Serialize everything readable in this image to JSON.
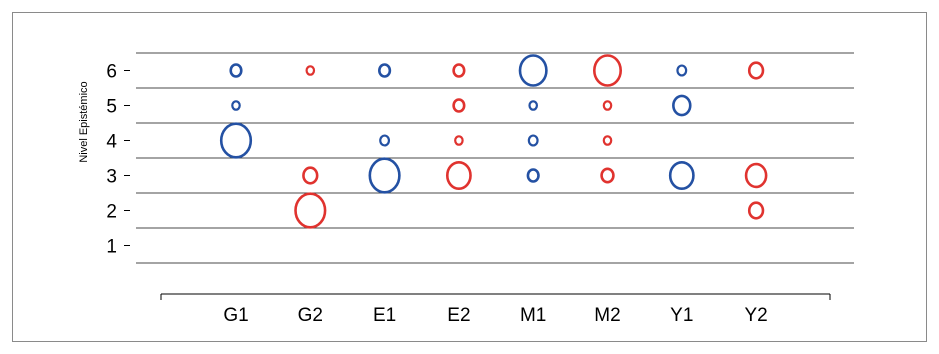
{
  "chart_data": {
    "type": "scatter",
    "title": "",
    "xlabel": "",
    "ylabel": "Nivel Epistémico",
    "categories": [
      "G1",
      "G2",
      "E1",
      "E2",
      "M1",
      "M2",
      "Y1",
      "Y2"
    ],
    "yticks": [
      1,
      2,
      3,
      4,
      5,
      6
    ],
    "ylim": [
      0.5,
      6.5
    ],
    "grid": true,
    "colors": {
      "blue": "#2451a3",
      "red": "#e0332f"
    },
    "points": [
      {
        "x": "G1",
        "y": 6,
        "size": 1,
        "color": "blue"
      },
      {
        "x": "G1",
        "y": 5,
        "size": 0.5,
        "color": "blue"
      },
      {
        "x": "G1",
        "y": 4,
        "size": 4,
        "color": "blue"
      },
      {
        "x": "G2",
        "y": 6,
        "size": 0.5,
        "color": "red"
      },
      {
        "x": "G2",
        "y": 3,
        "size": 1.5,
        "color": "red"
      },
      {
        "x": "G2",
        "y": 2,
        "size": 4,
        "color": "red"
      },
      {
        "x": "E1",
        "y": 6,
        "size": 1,
        "color": "blue"
      },
      {
        "x": "E1",
        "y": 4,
        "size": 0.7,
        "color": "blue"
      },
      {
        "x": "E1",
        "y": 3,
        "size": 4,
        "color": "blue"
      },
      {
        "x": "E2",
        "y": 6,
        "size": 1,
        "color": "red"
      },
      {
        "x": "E2",
        "y": 5,
        "size": 1,
        "color": "red"
      },
      {
        "x": "E2",
        "y": 4,
        "size": 0.5,
        "color": "red"
      },
      {
        "x": "E2",
        "y": 3,
        "size": 3,
        "color": "red"
      },
      {
        "x": "M1",
        "y": 6,
        "size": 3.5,
        "color": "blue"
      },
      {
        "x": "M1",
        "y": 5,
        "size": 0.5,
        "color": "blue"
      },
      {
        "x": "M1",
        "y": 4,
        "size": 0.7,
        "color": "blue"
      },
      {
        "x": "M1",
        "y": 3,
        "size": 1,
        "color": "blue"
      },
      {
        "x": "M2",
        "y": 6,
        "size": 3.5,
        "color": "red"
      },
      {
        "x": "M2",
        "y": 5,
        "size": 0.5,
        "color": "red"
      },
      {
        "x": "M2",
        "y": 4,
        "size": 0.5,
        "color": "red"
      },
      {
        "x": "M2",
        "y": 3,
        "size": 1.2,
        "color": "red"
      },
      {
        "x": "Y1",
        "y": 6,
        "size": 0.7,
        "color": "blue"
      },
      {
        "x": "Y1",
        "y": 5,
        "size": 2,
        "color": "blue"
      },
      {
        "x": "Y1",
        "y": 3,
        "size": 3,
        "color": "blue"
      },
      {
        "x": "Y2",
        "y": 6,
        "size": 1.5,
        "color": "red"
      },
      {
        "x": "Y2",
        "y": 3,
        "size": 2.5,
        "color": "red"
      },
      {
        "x": "Y2",
        "y": 2,
        "size": 1.5,
        "color": "red"
      }
    ]
  }
}
